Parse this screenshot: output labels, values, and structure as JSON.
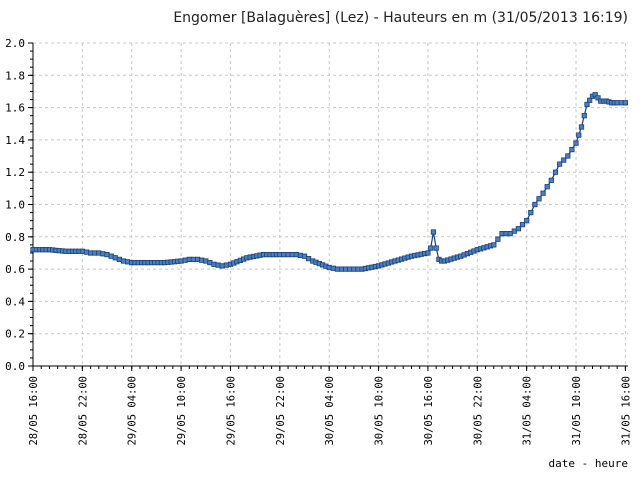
{
  "chart_data": {
    "type": "line",
    "title": "Engomer [Balaguères] (Lez) - Hauteurs en m (31/05/2013 16:19)",
    "xlabel": "date - heure",
    "ylabel": "",
    "ylim": [
      0.0,
      2.0
    ],
    "yticks": [
      "0.0",
      "0.2",
      "0.4",
      "0.6",
      "0.8",
      "1.0",
      "1.2",
      "1.4",
      "1.6",
      "1.8",
      "2.0"
    ],
    "xlim": [
      "28/05 16:00",
      "31/05 16:19"
    ],
    "xticks": [
      "28/05 16:00",
      "28/05 22:00",
      "29/05 04:00",
      "29/05 10:00",
      "29/05 16:00",
      "29/05 22:00",
      "30/05 04:00",
      "30/05 10:00",
      "30/05 16:00",
      "30/05 22:00",
      "31/05 04:00",
      "31/05 10:00",
      "31/05 16:00"
    ],
    "grid": true,
    "marker": "square",
    "line_color": "#1a3f7a",
    "marker_color": "#4a7fc0",
    "series": [
      {
        "x": [
          "28/05 16:00",
          "28/05 18:00",
          "28/05 20:00",
          "28/05 22:00",
          "28/05 23:00",
          "29/05 00:00",
          "29/05 01:00",
          "29/05 02:00",
          "29/05 03:00",
          "29/05 04:00",
          "29/05 06:00",
          "29/05 08:00",
          "29/05 10:00",
          "29/05 11:00",
          "29/05 12:00",
          "29/05 13:00",
          "29/05 14:00",
          "29/05 15:00",
          "29/05 16:00",
          "29/05 18:00",
          "29/05 20:00",
          "29/05 22:00",
          "29/05 23:00",
          "30/05 00:00",
          "30/05 01:00",
          "30/05 02:00",
          "30/05 04:00",
          "30/05 05:00",
          "30/05 06:00",
          "30/05 07:00",
          "30/05 08:00",
          "30/05 10:00",
          "30/05 12:00",
          "30/05 14:00",
          "30/05 16:00",
          "30/05 16:20",
          "30/05 16:40",
          "30/05 17:00",
          "30/05 17:20",
          "30/05 17:40",
          "30/05 18:00",
          "30/05 20:00",
          "30/05 22:00",
          "31/05 00:00",
          "31/05 01:00",
          "31/05 02:00",
          "31/05 03:00",
          "31/05 04:00",
          "31/05 05:00",
          "31/05 06:00",
          "31/05 07:00",
          "31/05 08:00",
          "31/05 09:00",
          "31/05 10:00",
          "31/05 10:40",
          "31/05 11:20",
          "31/05 12:00",
          "31/05 12:20",
          "31/05 12:40",
          "31/05 13:00",
          "31/05 13:40",
          "31/05 14:20",
          "31/05 15:00",
          "31/05 16:00"
        ],
        "values": [
          0.72,
          0.72,
          0.71,
          0.71,
          0.7,
          0.7,
          0.69,
          0.67,
          0.65,
          0.64,
          0.64,
          0.64,
          0.65,
          0.66,
          0.66,
          0.65,
          0.63,
          0.62,
          0.63,
          0.67,
          0.69,
          0.69,
          0.69,
          0.69,
          0.68,
          0.65,
          0.61,
          0.6,
          0.6,
          0.6,
          0.6,
          0.62,
          0.65,
          0.68,
          0.7,
          0.73,
          0.83,
          0.73,
          0.66,
          0.65,
          0.65,
          0.68,
          0.72,
          0.75,
          0.82,
          0.82,
          0.85,
          0.9,
          1.0,
          1.07,
          1.15,
          1.25,
          1.3,
          1.38,
          1.48,
          1.62,
          1.67,
          1.68,
          1.66,
          1.64,
          1.64,
          1.63,
          1.63,
          1.63
        ]
      }
    ]
  }
}
